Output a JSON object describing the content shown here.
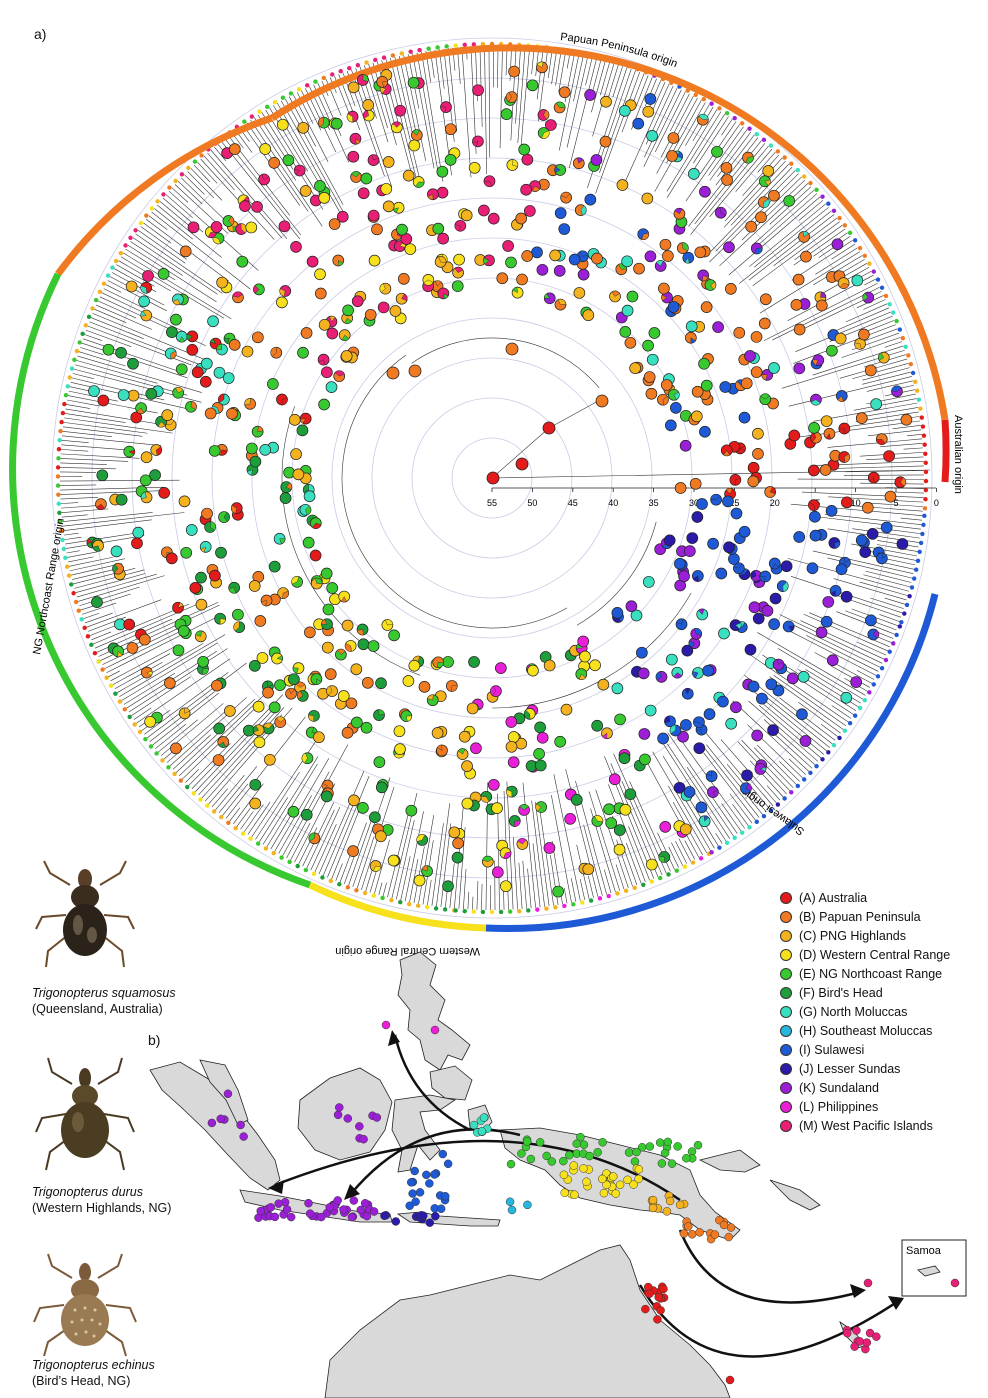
{
  "panel_a_label": "a)",
  "panel_b_label": "b)",
  "axis_ticks": [
    "55",
    "50",
    "45",
    "40",
    "35",
    "30",
    "25",
    "20",
    "15",
    "10",
    "5",
    "0"
  ],
  "clade_labels": {
    "papuan": "Papuan Peninsula origin",
    "australian": "Australian origin",
    "northcoast": "NG Northcoast Range origin",
    "sulawesi": "Sulawesi origin",
    "western": "Western Central Range origin"
  },
  "samoa_label": "Samoa",
  "colors": {
    "A": "#e41b1b",
    "B": "#ef7a22",
    "C": "#f4b21f",
    "D": "#f7e01c",
    "E": "#37c92f",
    "F": "#1e9e3a",
    "G": "#38e0c0",
    "H": "#27b6de",
    "I": "#1f5ad6",
    "J": "#2a1ba8",
    "K": "#9a1fd6",
    "L": "#ea1fd8",
    "M": "#e81f74"
  },
  "legend": [
    {
      "key": "A",
      "label": "(A) Australia"
    },
    {
      "key": "B",
      "label": "(B) Papuan Peninsula"
    },
    {
      "key": "C",
      "label": "(C) PNG Highlands"
    },
    {
      "key": "D",
      "label": "(D) Western Central Range"
    },
    {
      "key": "E",
      "label": "(E) NG Northcoast Range"
    },
    {
      "key": "F",
      "label": "(F) Bird's Head"
    },
    {
      "key": "G",
      "label": "(G) North Moluccas"
    },
    {
      "key": "H",
      "label": "(H) Southeast Moluccas"
    },
    {
      "key": "I",
      "label": "(I) Sulawesi"
    },
    {
      "key": "J",
      "label": "(J) Lesser Sundas"
    },
    {
      "key": "K",
      "label": "(K) Sundaland"
    },
    {
      "key": "L",
      "label": "(L) Philippines"
    },
    {
      "key": "M",
      "label": "(M) West Pacific Islands"
    }
  ],
  "species": [
    {
      "name": "Trigonopterus squamosus",
      "location": "(Queensland, Australia)"
    },
    {
      "name": "Trigonopterus durus",
      "location": "(Western Highlands, NG)"
    },
    {
      "name": "Trigonopterus echinus",
      "location": "(Bird’s Head, NG)"
    }
  ]
}
